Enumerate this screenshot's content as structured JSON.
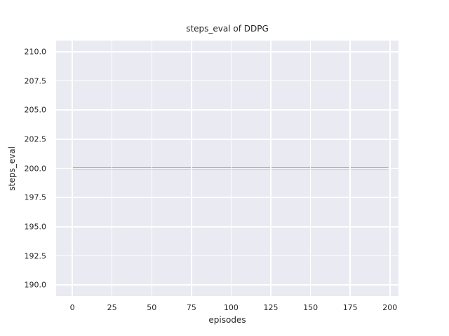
{
  "figure": {
    "background": "#FFFFFF"
  },
  "chart_data": {
    "type": "line",
    "title": "steps_eval of DDPG",
    "xlabel": "episodes",
    "ylabel": "steps_eval",
    "xlim": [
      -10.2,
      205.4
    ],
    "ylim": [
      189.05,
      210.95
    ],
    "grid": true,
    "legend": "none",
    "plot_bg": "#EAEAF2",
    "grid_color": "#FFFFFF",
    "text_color": "#262626",
    "xticks": [
      0,
      25,
      50,
      75,
      100,
      125,
      150,
      175,
      200
    ],
    "xtick_labels": [
      "0",
      "25",
      "50",
      "75",
      "100",
      "125",
      "150",
      "175",
      "200"
    ],
    "yticks": [
      190,
      192.5,
      195,
      197.5,
      200,
      202.5,
      205,
      207.5,
      210
    ],
    "ytick_labels": [
      "190.0",
      "192.5",
      "195.0",
      "197.5",
      "200.0",
      "202.5",
      "205.0",
      "207.5",
      "210.0"
    ],
    "series": [
      {
        "name": "steps_eval",
        "color": "#4C72B0",
        "linewidth": 2,
        "x": [
          0,
          199
        ],
        "y": [
          200,
          200
        ]
      }
    ]
  }
}
